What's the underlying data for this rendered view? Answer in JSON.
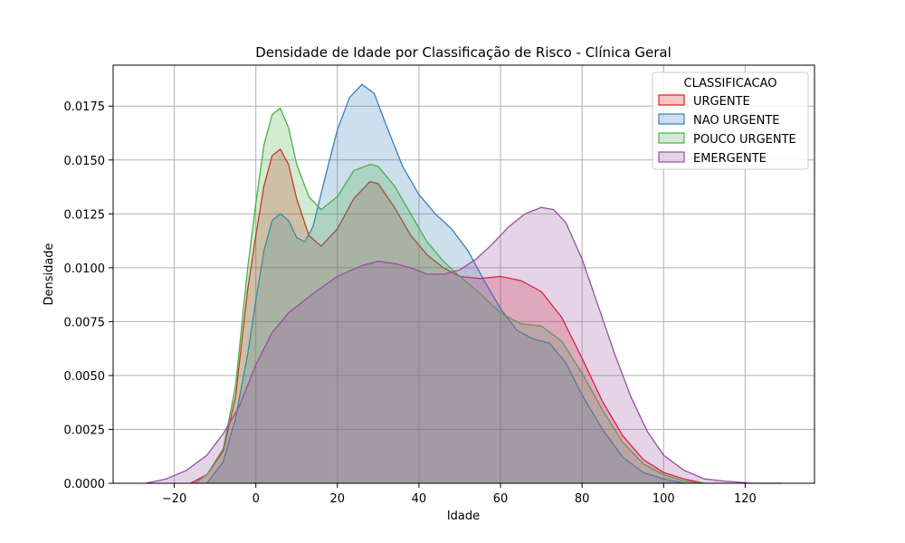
{
  "chart_data": {
    "type": "area",
    "title": "Densidade de Idade por Classificação de Risco - Clínica Geral",
    "xlabel": "Idade",
    "ylabel": "Densidade",
    "xlim": [
      -35,
      137
    ],
    "ylim": [
      0,
      0.0194
    ],
    "xticks": [
      -20,
      0,
      20,
      40,
      60,
      80,
      100,
      120
    ],
    "yticks": [
      0.0,
      0.0025,
      0.005,
      0.0075,
      0.01,
      0.0125,
      0.015,
      0.0175
    ],
    "xtick_labels": [
      "−20",
      "0",
      "20",
      "40",
      "60",
      "80",
      "100",
      "120"
    ],
    "ytick_labels": [
      "0.0000",
      "0.0025",
      "0.0050",
      "0.0075",
      "0.0100",
      "0.0125",
      "0.0150",
      "0.0175"
    ],
    "grid": true,
    "legend": {
      "title": "CLASSIFICACAO",
      "placement": "top-right"
    },
    "series": [
      {
        "name": "URGENTE",
        "color": "#e41a1c",
        "points": [
          [
            -16,
            0
          ],
          [
            -12,
            0.0004
          ],
          [
            -8,
            0.0015
          ],
          [
            -5,
            0.004
          ],
          [
            -2,
            0.009
          ],
          [
            0,
            0.0115
          ],
          [
            2,
            0.0138
          ],
          [
            4,
            0.0152
          ],
          [
            6,
            0.0155
          ],
          [
            8,
            0.0148
          ],
          [
            10,
            0.0132
          ],
          [
            13,
            0.0115
          ],
          [
            16,
            0.011
          ],
          [
            20,
            0.0118
          ],
          [
            24,
            0.0132
          ],
          [
            28,
            0.014
          ],
          [
            30,
            0.0139
          ],
          [
            34,
            0.0128
          ],
          [
            38,
            0.0115
          ],
          [
            42,
            0.0106
          ],
          [
            46,
            0.01
          ],
          [
            50,
            0.0096
          ],
          [
            55,
            0.0095
          ],
          [
            60,
            0.0096
          ],
          [
            65,
            0.0094
          ],
          [
            70,
            0.0089
          ],
          [
            75,
            0.0077
          ],
          [
            80,
            0.0058
          ],
          [
            85,
            0.0038
          ],
          [
            90,
            0.0022
          ],
          [
            95,
            0.0011
          ],
          [
            100,
            0.0005
          ],
          [
            105,
            0.0002
          ],
          [
            110,
            0
          ]
        ]
      },
      {
        "name": "NAO URGENTE",
        "color": "#377eb8",
        "points": [
          [
            -12,
            0
          ],
          [
            -8,
            0.001
          ],
          [
            -5,
            0.003
          ],
          [
            -2,
            0.006
          ],
          [
            0,
            0.0085
          ],
          [
            2,
            0.0108
          ],
          [
            4,
            0.0122
          ],
          [
            6,
            0.0125
          ],
          [
            8,
            0.0122
          ],
          [
            10,
            0.0114
          ],
          [
            12,
            0.0112
          ],
          [
            14,
            0.0119
          ],
          [
            17,
            0.0142
          ],
          [
            20,
            0.0164
          ],
          [
            23,
            0.0179
          ],
          [
            26,
            0.0185
          ],
          [
            29,
            0.0181
          ],
          [
            32,
            0.0166
          ],
          [
            36,
            0.0147
          ],
          [
            40,
            0.0134
          ],
          [
            44,
            0.0125
          ],
          [
            48,
            0.0118
          ],
          [
            52,
            0.0108
          ],
          [
            56,
            0.0094
          ],
          [
            60,
            0.0081
          ],
          [
            64,
            0.0071
          ],
          [
            68,
            0.0067
          ],
          [
            72,
            0.0065
          ],
          [
            76,
            0.0056
          ],
          [
            80,
            0.0041
          ],
          [
            85,
            0.0025
          ],
          [
            90,
            0.0012
          ],
          [
            95,
            0.0005
          ],
          [
            100,
            0.0002
          ],
          [
            105,
            0
          ]
        ]
      },
      {
        "name": "POUCO URGENTE",
        "color": "#4daf4a",
        "points": [
          [
            -15,
            0
          ],
          [
            -12,
            0.0004
          ],
          [
            -8,
            0.0016
          ],
          [
            -5,
            0.0045
          ],
          [
            -2,
            0.01
          ],
          [
            0,
            0.013
          ],
          [
            2,
            0.0157
          ],
          [
            4,
            0.0171
          ],
          [
            6,
            0.0174
          ],
          [
            8,
            0.0165
          ],
          [
            10,
            0.0148
          ],
          [
            13,
            0.0133
          ],
          [
            16,
            0.0127
          ],
          [
            20,
            0.0133
          ],
          [
            24,
            0.0145
          ],
          [
            28,
            0.0148
          ],
          [
            30,
            0.0147
          ],
          [
            34,
            0.0138
          ],
          [
            38,
            0.0125
          ],
          [
            42,
            0.0112
          ],
          [
            46,
            0.0103
          ],
          [
            50,
            0.0096
          ],
          [
            55,
            0.0088
          ],
          [
            60,
            0.0079
          ],
          [
            65,
            0.0074
          ],
          [
            70,
            0.0073
          ],
          [
            75,
            0.0066
          ],
          [
            80,
            0.0051
          ],
          [
            85,
            0.0034
          ],
          [
            90,
            0.0019
          ],
          [
            95,
            0.0009
          ],
          [
            100,
            0.0004
          ],
          [
            105,
            0.0001
          ],
          [
            110,
            0
          ]
        ]
      },
      {
        "name": "EMERGENTE",
        "color": "#984ea3",
        "points": [
          [
            -27,
            0
          ],
          [
            -22,
            0.0002
          ],
          [
            -17,
            0.0006
          ],
          [
            -12,
            0.0013
          ],
          [
            -8,
            0.0023
          ],
          [
            -4,
            0.0036
          ],
          [
            0,
            0.0055
          ],
          [
            4,
            0.007
          ],
          [
            8,
            0.0079
          ],
          [
            14,
            0.0088
          ],
          [
            20,
            0.0096
          ],
          [
            26,
            0.0101
          ],
          [
            30,
            0.0103
          ],
          [
            34,
            0.0102
          ],
          [
            38,
            0.01
          ],
          [
            42,
            0.0097
          ],
          [
            46,
            0.0097
          ],
          [
            50,
            0.0099
          ],
          [
            54,
            0.0104
          ],
          [
            58,
            0.0111
          ],
          [
            62,
            0.0119
          ],
          [
            66,
            0.0125
          ],
          [
            70,
            0.0128
          ],
          [
            73,
            0.0127
          ],
          [
            76,
            0.0121
          ],
          [
            80,
            0.0104
          ],
          [
            84,
            0.0082
          ],
          [
            88,
            0.006
          ],
          [
            92,
            0.004
          ],
          [
            96,
            0.0024
          ],
          [
            100,
            0.0013
          ],
          [
            105,
            0.0006
          ],
          [
            110,
            0.0002
          ],
          [
            115,
            0.0001
          ],
          [
            122,
            0
          ],
          [
            129,
            0
          ]
        ]
      }
    ]
  }
}
